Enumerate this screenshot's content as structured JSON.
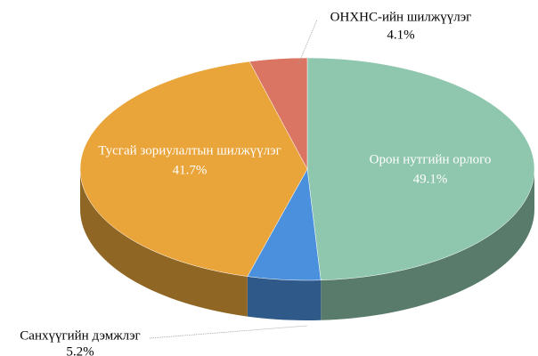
{
  "chart_data": {
    "type": "pie",
    "categories": [
      "Орон нутгийн орлого",
      "Санхүүгийн дэмжлэг",
      "Тусгай зориулалтын шилжүүлэг",
      "ОНХНС-ийн шилжүүлэг"
    ],
    "values": [
      49.1,
      5.2,
      41.7,
      4.1
    ],
    "value_labels": [
      "49.1%",
      "5.2%",
      "41.7%",
      "4.1%"
    ],
    "colors": [
      "#8ec6ae",
      "#4a90dc",
      "#e9a43a",
      "#db7563"
    ]
  }
}
